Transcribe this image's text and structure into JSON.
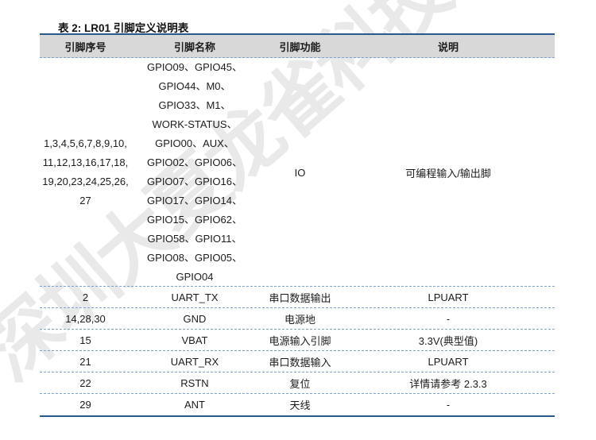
{
  "title": "表 2: LR01 引脚定义说明表",
  "watermark_text": "深圳大夏龙雀科技",
  "colors": {
    "accent_border": "#27598c",
    "row_divider": "#7aa2d2",
    "header_background": "#d8d8d8",
    "text": "#1c1c1c",
    "watermark": "#e9e9e9"
  },
  "table": {
    "headers": [
      "引脚序号",
      "引脚名称",
      "引脚功能",
      "说明"
    ],
    "io_row": {
      "pins": "1,3,4,5,6,7,8,9,10,\n11,12,13,16,17,18,\n19,20,23,24,25,26,\n27",
      "names": "GPIO09、GPIO45、\nGPIO44、M0、\nGPIO33、M1、\nWORK-STATUS、\nGPIO00、AUX、\nGPIO02、GPIO06、\nGPIO07、GPIO16、\nGPIO17、GPIO14、\nGPIO15、GPIO62、\nGPIO58、GPIO11、\nGPIO08、GPIO05、\nGPIO04",
      "function": "IO",
      "description": "可编程输入/输出脚"
    },
    "rows": [
      {
        "pin": "2",
        "name": "UART_TX",
        "function": "串口数据输出",
        "description": "LPUART"
      },
      {
        "pin": "14,28,30",
        "name": "GND",
        "function": "电源地",
        "description": "-"
      },
      {
        "pin": "15",
        "name": "VBAT",
        "function": "电源输入引脚",
        "description": "3.3V(典型值)"
      },
      {
        "pin": "21",
        "name": "UART_RX",
        "function": "串口数据输入",
        "description": "LPUART"
      },
      {
        "pin": "22",
        "name": "RSTN",
        "function": "复位",
        "description": "详情请参考 2.3.3"
      },
      {
        "pin": "29",
        "name": "ANT",
        "function": "天线",
        "description": "-"
      }
    ]
  }
}
